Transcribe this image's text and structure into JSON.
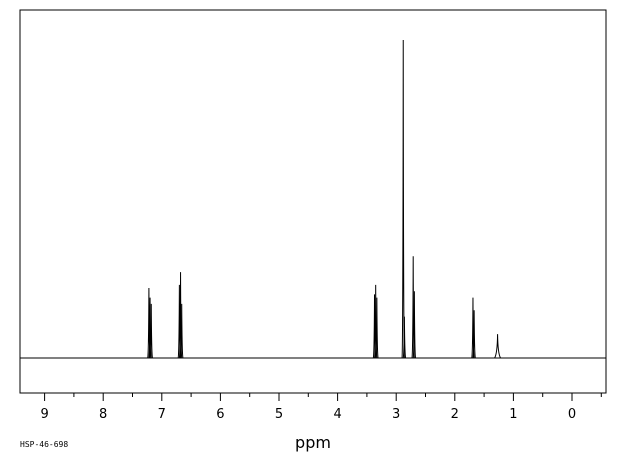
{
  "chart_data": {
    "type": "line",
    "xlabel": "ppm",
    "ylabel": "",
    "xlim": [
      9.45,
      -0.6
    ],
    "ylim": [
      0,
      100
    ],
    "x_reversed": true,
    "x_ticks": [
      9,
      8,
      7,
      6,
      5,
      4,
      3,
      2,
      1,
      0
    ],
    "x_tick_labels": [
      "9",
      "8",
      "7",
      "6",
      "5",
      "4",
      "3",
      "2",
      "1",
      "0"
    ],
    "spectrum_code": "HSP-46-698",
    "grid": false,
    "legend": "none",
    "peaks": [
      {
        "ppm": 7.22,
        "height": 22
      },
      {
        "ppm": 7.2,
        "height": 19
      },
      {
        "ppm": 7.18,
        "height": 17
      },
      {
        "ppm": 6.7,
        "height": 23
      },
      {
        "ppm": 6.68,
        "height": 27
      },
      {
        "ppm": 6.66,
        "height": 17
      },
      {
        "ppm": 3.37,
        "height": 20
      },
      {
        "ppm": 3.35,
        "height": 23
      },
      {
        "ppm": 3.33,
        "height": 19
      },
      {
        "ppm": 2.88,
        "height": 100
      },
      {
        "ppm": 2.86,
        "height": 13
      },
      {
        "ppm": 2.71,
        "height": 32
      },
      {
        "ppm": 2.69,
        "height": 21
      },
      {
        "ppm": 1.69,
        "height": 19
      },
      {
        "ppm": 1.67,
        "height": 15
      },
      {
        "ppm": 1.27,
        "height": 7.5
      }
    ],
    "line_color": "#000000"
  }
}
